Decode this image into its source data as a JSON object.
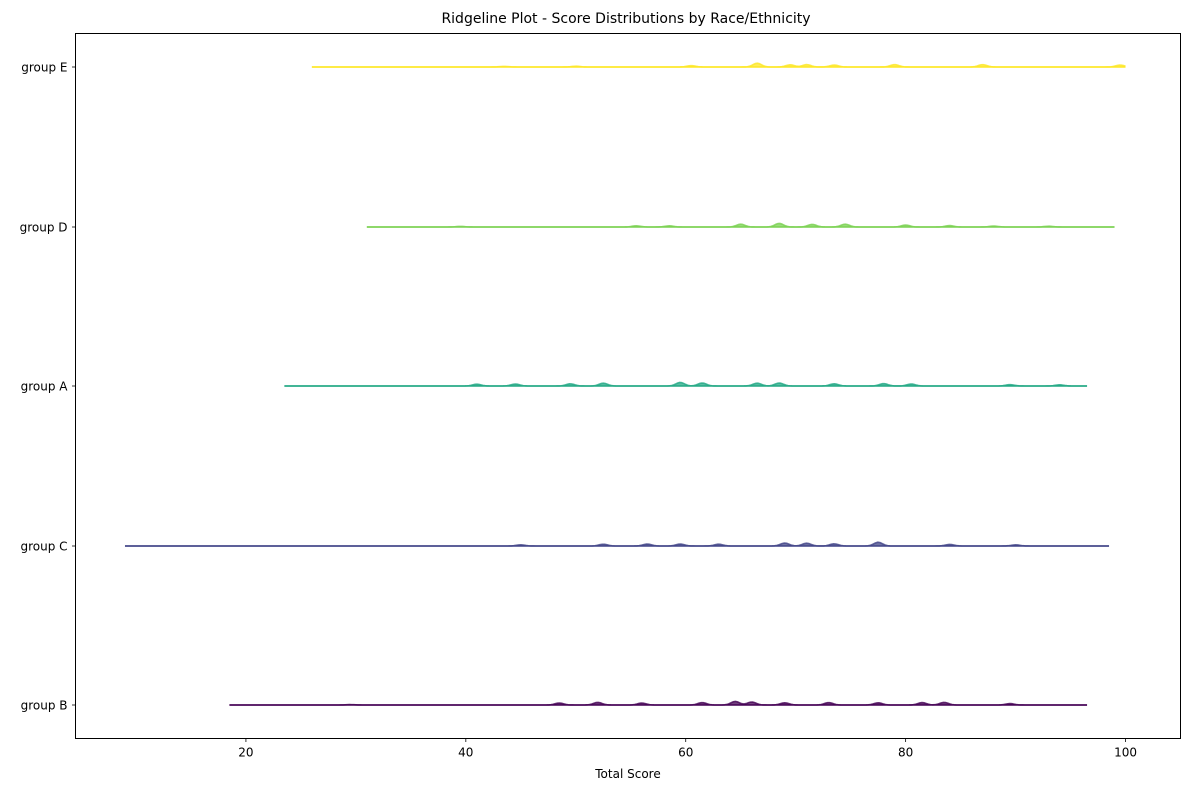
{
  "chart_data": {
    "type": "area",
    "title": "Ridgeline Plot - Score Distributions by Race/Ethnicity",
    "xlabel": "Total Score",
    "ylabel": "",
    "xlim": [
      4.5,
      105
    ],
    "x_ticks": [
      20,
      40,
      60,
      80,
      100
    ],
    "grid": false,
    "legend": "none",
    "series": [
      {
        "name": "group E",
        "color": "#fde725",
        "x_range": [
          26,
          100
        ],
        "peaks": [
          [
            43.5,
            0.15
          ],
          [
            50,
            0.2
          ],
          [
            60.5,
            0.35
          ],
          [
            66.5,
            0.95
          ],
          [
            69.5,
            0.55
          ],
          [
            71,
            0.6
          ],
          [
            73.5,
            0.5
          ],
          [
            79,
            0.6
          ],
          [
            87,
            0.6
          ],
          [
            99.5,
            0.5
          ]
        ]
      },
      {
        "name": "group D",
        "color": "#7ad151",
        "x_range": [
          31,
          99
        ],
        "peaks": [
          [
            39.5,
            0.15
          ],
          [
            55.5,
            0.3
          ],
          [
            58.5,
            0.3
          ],
          [
            65,
            0.7
          ],
          [
            68.5,
            0.9
          ],
          [
            71.5,
            0.65
          ],
          [
            74.5,
            0.7
          ],
          [
            80,
            0.5
          ],
          [
            84,
            0.35
          ],
          [
            88,
            0.25
          ],
          [
            93,
            0.2
          ]
        ]
      },
      {
        "name": "group A",
        "color": "#22a884",
        "x_range": [
          23.5,
          96.5
        ],
        "peaks": [
          [
            41,
            0.45
          ],
          [
            44.5,
            0.5
          ],
          [
            49.5,
            0.55
          ],
          [
            52.5,
            0.7
          ],
          [
            59.5,
            0.9
          ],
          [
            61.5,
            0.75
          ],
          [
            66.5,
            0.7
          ],
          [
            68.5,
            0.75
          ],
          [
            73.5,
            0.55
          ],
          [
            78,
            0.6
          ],
          [
            80.5,
            0.5
          ],
          [
            89.5,
            0.35
          ],
          [
            94,
            0.3
          ]
        ]
      },
      {
        "name": "group C",
        "color": "#414487",
        "x_range": [
          9,
          98.5
        ],
        "peaks": [
          [
            45,
            0.3
          ],
          [
            52.5,
            0.45
          ],
          [
            56.5,
            0.5
          ],
          [
            59.5,
            0.5
          ],
          [
            63,
            0.45
          ],
          [
            69,
            0.75
          ],
          [
            71,
            0.7
          ],
          [
            73.5,
            0.55
          ],
          [
            77.5,
            0.95
          ],
          [
            84,
            0.4
          ],
          [
            90,
            0.3
          ]
        ]
      },
      {
        "name": "group B",
        "color": "#440154",
        "x_range": [
          18.5,
          96.5
        ],
        "peaks": [
          [
            29.5,
            0.1
          ],
          [
            48.5,
            0.5
          ],
          [
            52,
            0.65
          ],
          [
            56,
            0.5
          ],
          [
            61.5,
            0.6
          ],
          [
            64.5,
            0.9
          ],
          [
            66,
            0.75
          ],
          [
            69,
            0.55
          ],
          [
            73,
            0.6
          ],
          [
            77.5,
            0.55
          ],
          [
            81.5,
            0.6
          ],
          [
            83.5,
            0.65
          ],
          [
            89.5,
            0.35
          ]
        ]
      }
    ]
  }
}
